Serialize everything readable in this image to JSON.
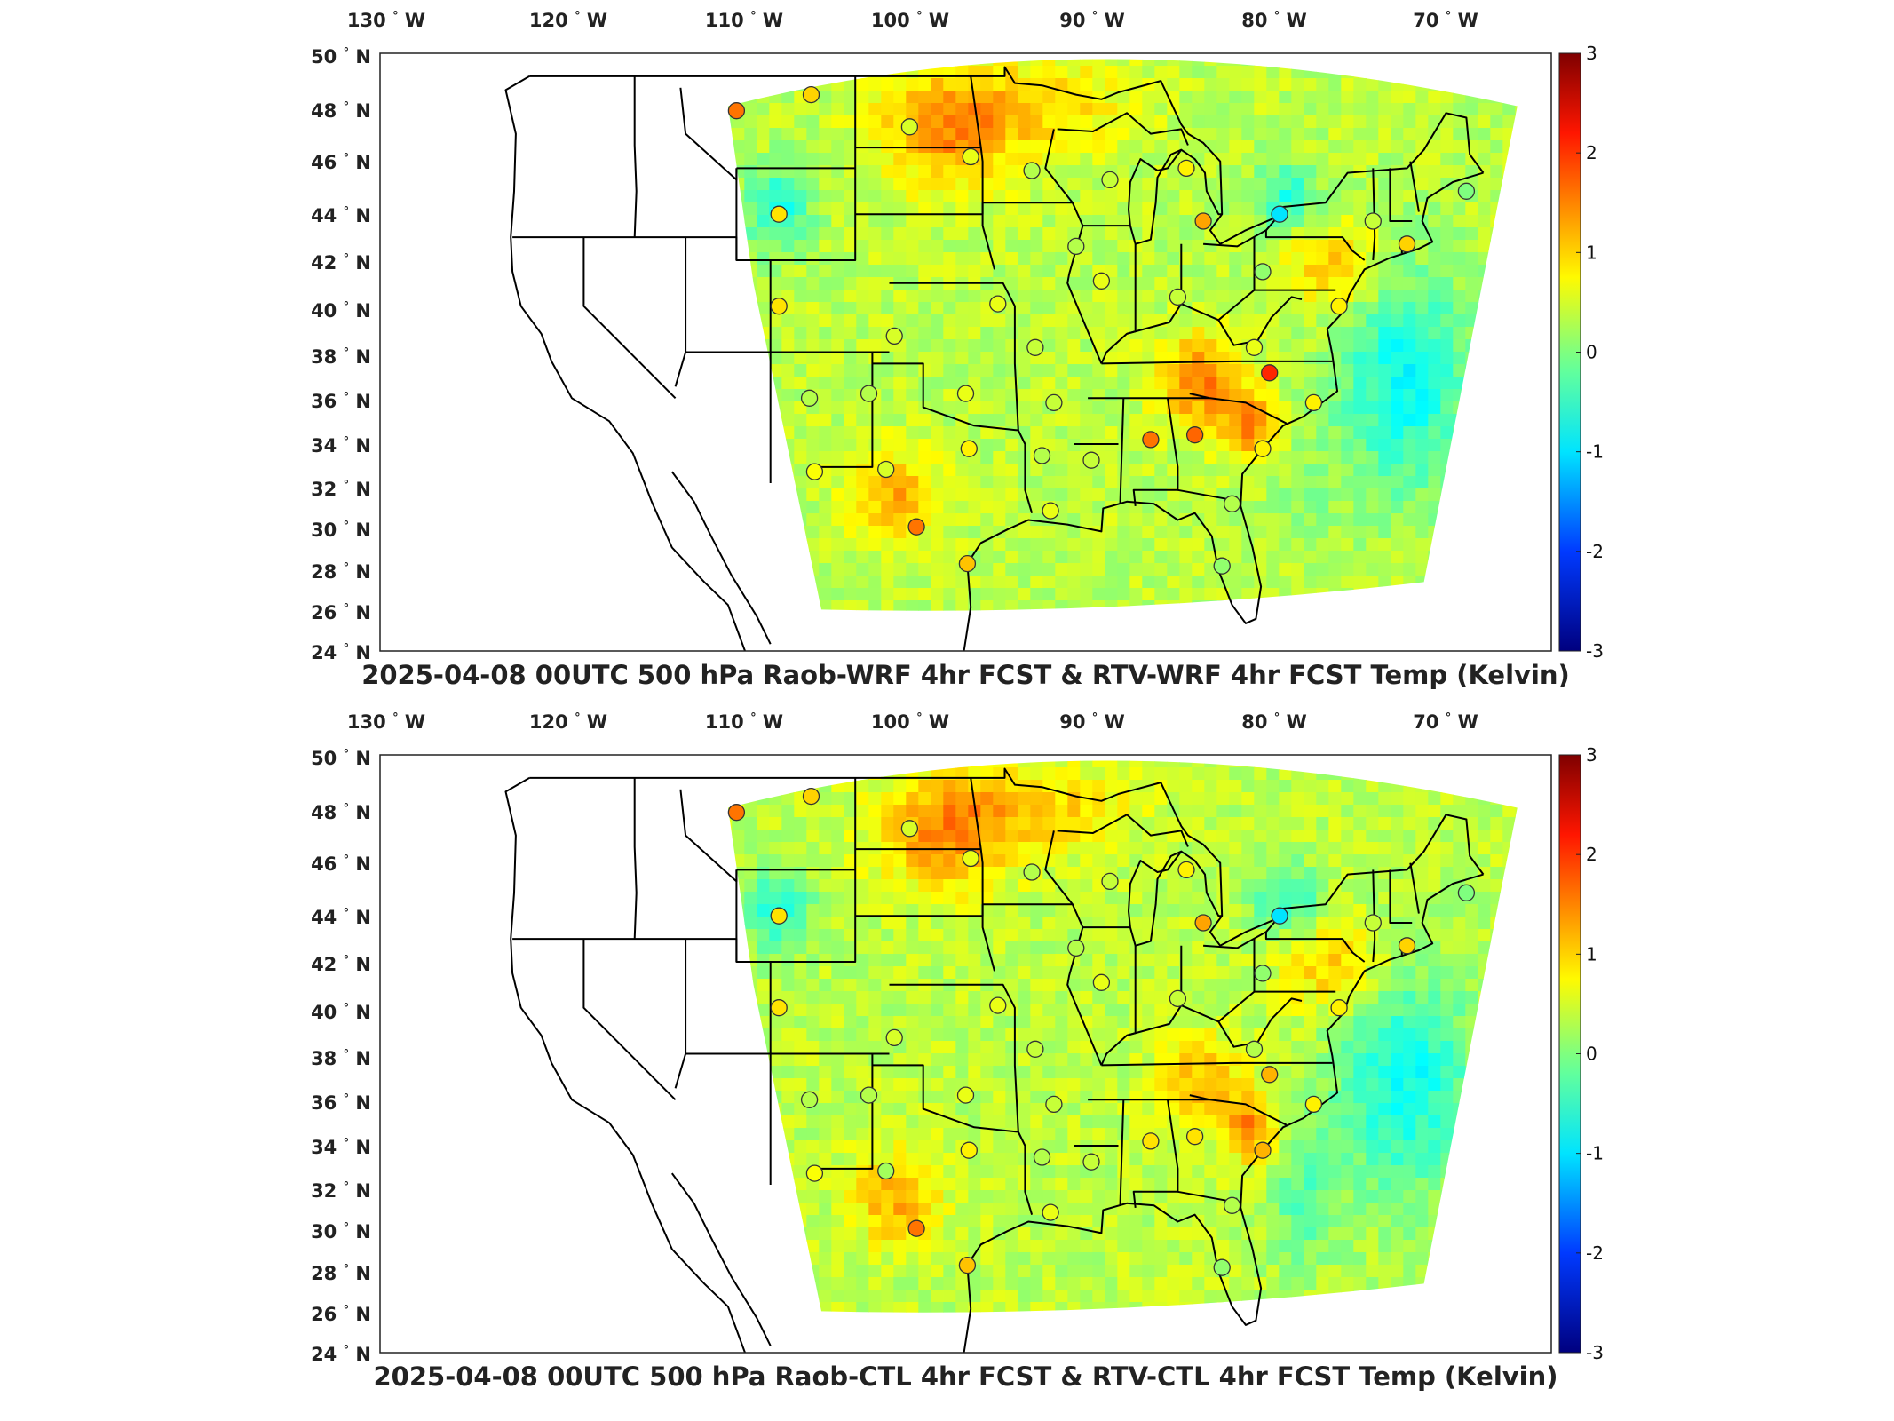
{
  "panels": [
    {
      "title": "2025-04-08 00UTC 500 hPa Raob-WRF 4hr FCST & RTV-WRF 4hr FCST Temp (Kelvin)",
      "lon_ticks": [
        "130",
        "120",
        "110",
        "100",
        "90",
        "80",
        "70"
      ],
      "lat_ticks": [
        "50",
        "48",
        "46",
        "44",
        "42",
        "40",
        "38",
        "36",
        "34",
        "32",
        "30",
        "28",
        "26",
        "24"
      ],
      "colorbar": {
        "ticks": [
          "3",
          "2",
          "1",
          "0",
          "-1",
          "-2",
          "-3"
        ],
        "range": [
          -3,
          3
        ]
      },
      "stations": [
        {
          "lon": -111.0,
          "lat": 47.5,
          "value": 1.6
        },
        {
          "lon": -106.6,
          "lat": 48.2,
          "value": 1.0
        },
        {
          "lon": -100.8,
          "lat": 46.8,
          "value": 0.5
        },
        {
          "lon": -97.2,
          "lat": 45.5,
          "value": 0.6
        },
        {
          "lon": -93.6,
          "lat": 44.9,
          "value": 0.3
        },
        {
          "lon": -89.0,
          "lat": 44.5,
          "value": 0.4
        },
        {
          "lon": -84.5,
          "lat": 45.0,
          "value": 0.8
        },
        {
          "lon": -108.5,
          "lat": 43.0,
          "value": 0.9
        },
        {
          "lon": -83.5,
          "lat": 42.7,
          "value": 1.3
        },
        {
          "lon": -79.0,
          "lat": 43.0,
          "value": -1.0
        },
        {
          "lon": -73.5,
          "lat": 42.7,
          "value": 0.4
        },
        {
          "lon": -68.0,
          "lat": 44.0,
          "value": 0.0
        },
        {
          "lon": -91.0,
          "lat": 41.6,
          "value": 0.3
        },
        {
          "lon": -89.5,
          "lat": 40.1,
          "value": 0.6
        },
        {
          "lon": -85.0,
          "lat": 39.4,
          "value": 0.4
        },
        {
          "lon": -80.0,
          "lat": 40.5,
          "value": 0.1
        },
        {
          "lon": -75.5,
          "lat": 39.0,
          "value": 0.8
        },
        {
          "lon": -71.5,
          "lat": 41.7,
          "value": 1.0
        },
        {
          "lon": -108.5,
          "lat": 39.0,
          "value": 0.9
        },
        {
          "lon": -95.6,
          "lat": 39.1,
          "value": 0.6
        },
        {
          "lon": -101.7,
          "lat": 37.7,
          "value": 0.5
        },
        {
          "lon": -93.4,
          "lat": 37.2,
          "value": 0.4
        },
        {
          "lon": -80.5,
          "lat": 37.2,
          "value": 0.6
        },
        {
          "lon": -79.6,
          "lat": 36.1,
          "value": 2.1
        },
        {
          "lon": -106.7,
          "lat": 35.0,
          "value": 0.3
        },
        {
          "lon": -103.2,
          "lat": 35.2,
          "value": 0.3
        },
        {
          "lon": -97.5,
          "lat": 35.2,
          "value": 0.6
        },
        {
          "lon": -92.3,
          "lat": 34.8,
          "value": 0.4
        },
        {
          "lon": -77.0,
          "lat": 34.8,
          "value": 0.8
        },
        {
          "lon": -86.6,
          "lat": 33.2,
          "value": 1.6
        },
        {
          "lon": -84.0,
          "lat": 33.4,
          "value": 1.7
        },
        {
          "lon": -80.0,
          "lat": 32.8,
          "value": 0.8
        },
        {
          "lon": -97.3,
          "lat": 32.8,
          "value": 0.8
        },
        {
          "lon": -93.0,
          "lat": 32.5,
          "value": 0.3
        },
        {
          "lon": -90.1,
          "lat": 32.3,
          "value": 0.4
        },
        {
          "lon": -102.2,
          "lat": 31.9,
          "value": 0.5
        },
        {
          "lon": -106.4,
          "lat": 31.8,
          "value": 0.7
        },
        {
          "lon": -92.5,
          "lat": 30.1,
          "value": 0.6
        },
        {
          "lon": -81.8,
          "lat": 30.4,
          "value": 0.3
        },
        {
          "lon": -100.4,
          "lat": 29.4,
          "value": 1.6
        },
        {
          "lon": -97.4,
          "lat": 27.8,
          "value": 1.1
        },
        {
          "lon": -82.4,
          "lat": 27.7,
          "value": 0.1
        }
      ]
    },
    {
      "title": "2025-04-08 00UTC 500 hPa Raob-CTL 4hr FCST & RTV-CTL 4hr FCST Temp (Kelvin)",
      "lon_ticks": [
        "130",
        "120",
        "110",
        "100",
        "90",
        "80",
        "70"
      ],
      "lat_ticks": [
        "50",
        "48",
        "46",
        "44",
        "42",
        "40",
        "38",
        "36",
        "34",
        "32",
        "30",
        "28",
        "26",
        "24"
      ],
      "colorbar": {
        "ticks": [
          "3",
          "2",
          "1",
          "0",
          "-1",
          "-2",
          "-3"
        ],
        "range": [
          -3,
          3
        ]
      },
      "stations": [
        {
          "lon": -111.0,
          "lat": 47.5,
          "value": 1.6
        },
        {
          "lon": -106.6,
          "lat": 48.2,
          "value": 1.0
        },
        {
          "lon": -100.8,
          "lat": 46.8,
          "value": 0.5
        },
        {
          "lon": -97.2,
          "lat": 45.5,
          "value": 0.6
        },
        {
          "lon": -93.6,
          "lat": 44.9,
          "value": 0.3
        },
        {
          "lon": -89.0,
          "lat": 44.5,
          "value": 0.4
        },
        {
          "lon": -84.5,
          "lat": 45.0,
          "value": 0.8
        },
        {
          "lon": -108.5,
          "lat": 43.0,
          "value": 0.9
        },
        {
          "lon": -83.5,
          "lat": 42.7,
          "value": 1.3
        },
        {
          "lon": -79.0,
          "lat": 43.0,
          "value": -1.0
        },
        {
          "lon": -73.5,
          "lat": 42.7,
          "value": 0.4
        },
        {
          "lon": -68.0,
          "lat": 44.0,
          "value": 0.0
        },
        {
          "lon": -91.0,
          "lat": 41.6,
          "value": 0.3
        },
        {
          "lon": -89.5,
          "lat": 40.1,
          "value": 0.6
        },
        {
          "lon": -85.0,
          "lat": 39.4,
          "value": 0.4
        },
        {
          "lon": -80.0,
          "lat": 40.5,
          "value": 0.1
        },
        {
          "lon": -75.5,
          "lat": 39.0,
          "value": 0.8
        },
        {
          "lon": -71.5,
          "lat": 41.7,
          "value": 1.0
        },
        {
          "lon": -108.5,
          "lat": 39.0,
          "value": 0.9
        },
        {
          "lon": -95.6,
          "lat": 39.1,
          "value": 0.6
        },
        {
          "lon": -101.7,
          "lat": 37.7,
          "value": 0.5
        },
        {
          "lon": -93.4,
          "lat": 37.2,
          "value": 0.4
        },
        {
          "lon": -80.5,
          "lat": 37.2,
          "value": 0.3
        },
        {
          "lon": -79.6,
          "lat": 36.1,
          "value": 1.2
        },
        {
          "lon": -106.7,
          "lat": 35.0,
          "value": 0.3
        },
        {
          "lon": -103.2,
          "lat": 35.2,
          "value": 0.3
        },
        {
          "lon": -97.5,
          "lat": 35.2,
          "value": 0.6
        },
        {
          "lon": -92.3,
          "lat": 34.8,
          "value": 0.4
        },
        {
          "lon": -77.0,
          "lat": 34.8,
          "value": 0.8
        },
        {
          "lon": -86.6,
          "lat": 33.2,
          "value": 0.9
        },
        {
          "lon": -84.0,
          "lat": 33.4,
          "value": 0.9
        },
        {
          "lon": -80.0,
          "lat": 32.8,
          "value": 1.2
        },
        {
          "lon": -97.3,
          "lat": 32.8,
          "value": 0.8
        },
        {
          "lon": -93.0,
          "lat": 32.5,
          "value": 0.3
        },
        {
          "lon": -90.1,
          "lat": 32.3,
          "value": 0.4
        },
        {
          "lon": -102.2,
          "lat": 31.9,
          "value": 0.2
        },
        {
          "lon": -106.4,
          "lat": 31.8,
          "value": 0.7
        },
        {
          "lon": -92.5,
          "lat": 30.1,
          "value": 0.6
        },
        {
          "lon": -81.8,
          "lat": 30.4,
          "value": 0.3
        },
        {
          "lon": -100.4,
          "lat": 29.4,
          "value": 1.6
        },
        {
          "lon": -97.4,
          "lat": 27.8,
          "value": 1.1
        },
        {
          "lon": -82.4,
          "lat": 27.7,
          "value": 0.1
        }
      ]
    }
  ],
  "symbols": {
    "degree": "°",
    "west": "W",
    "north": "N"
  }
}
